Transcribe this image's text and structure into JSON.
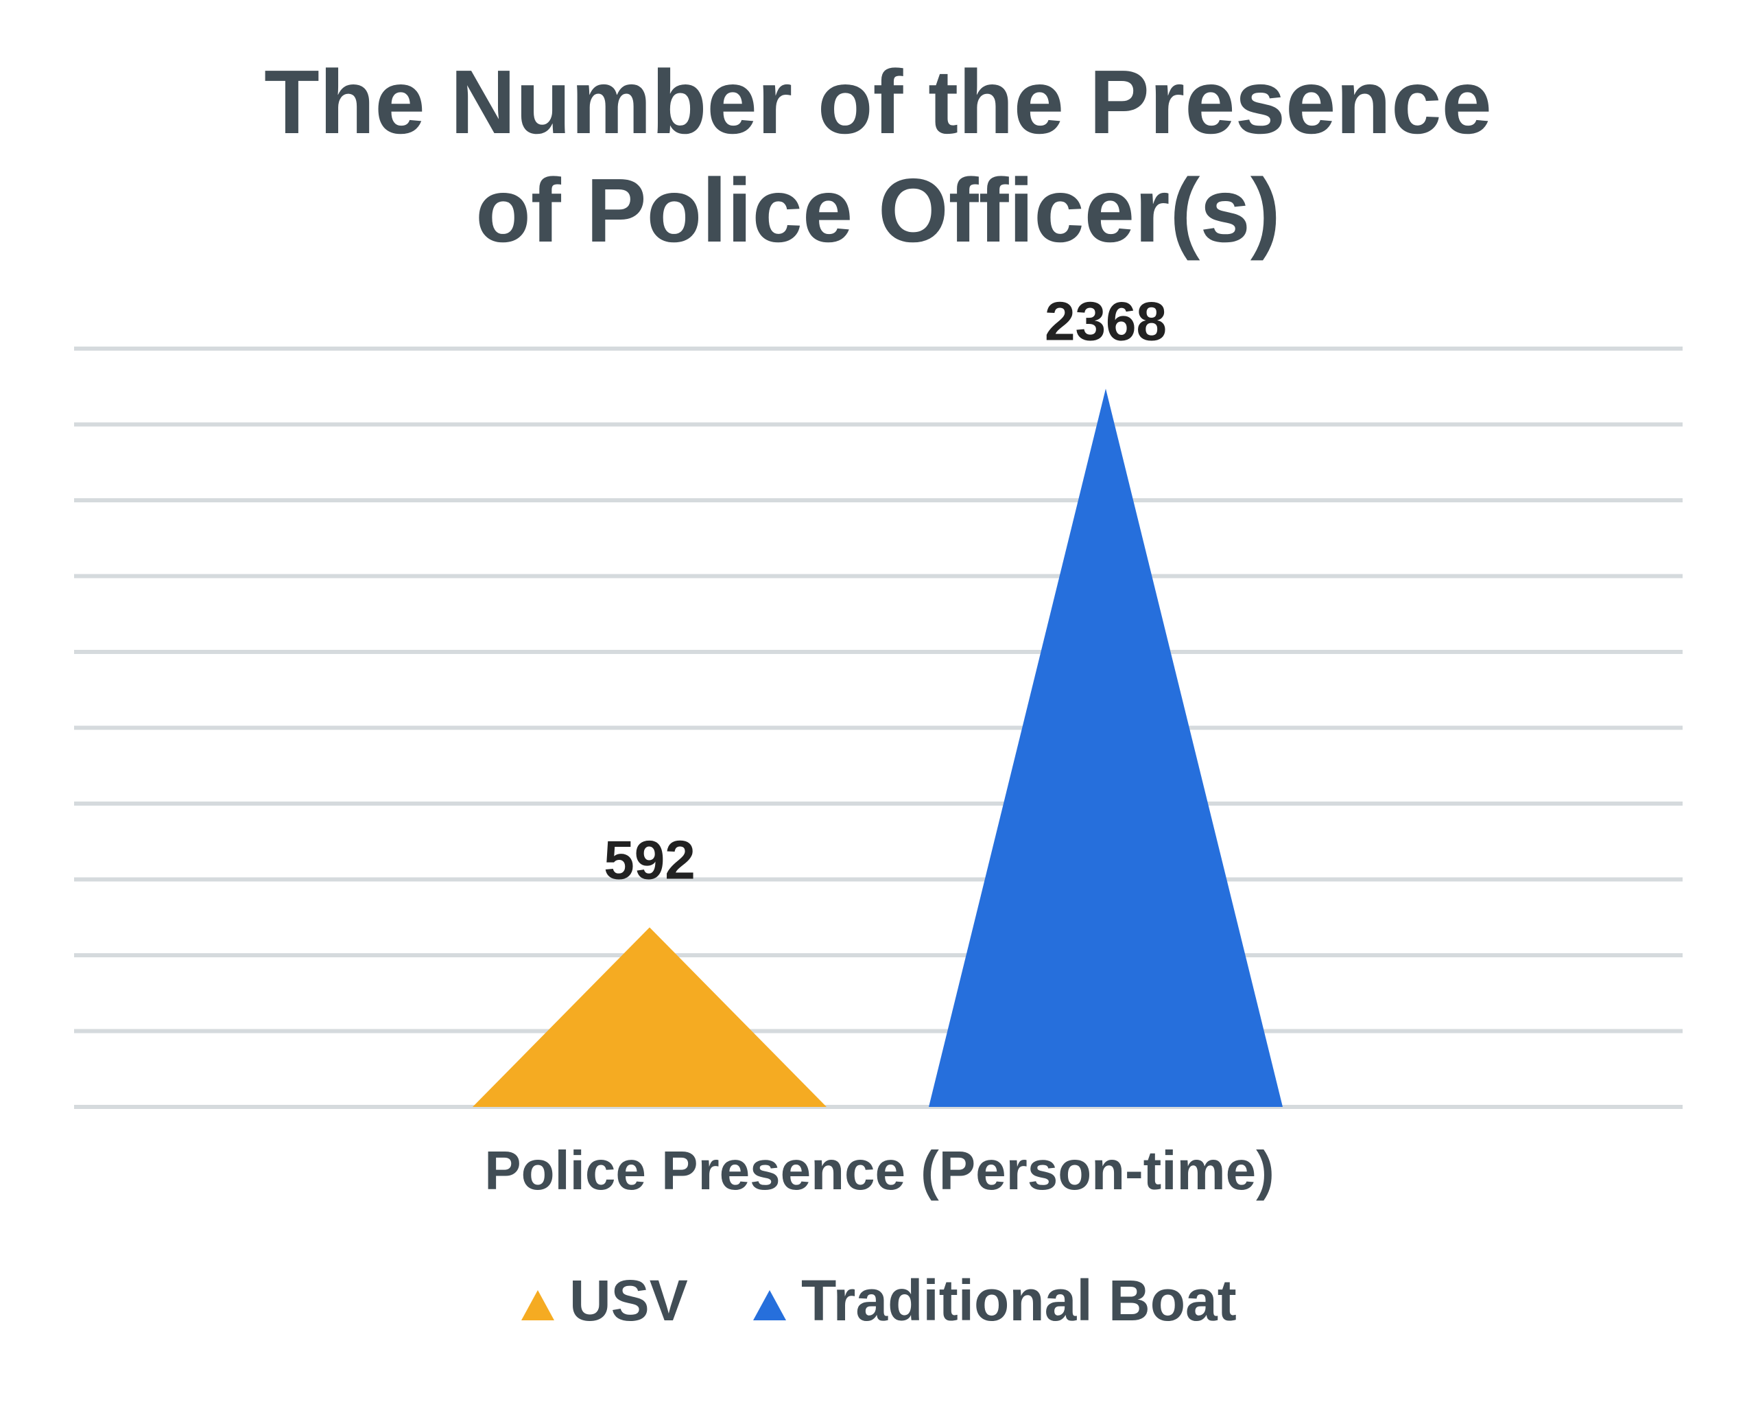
{
  "chart_data": {
    "type": "triangle-bar",
    "title": "The Number of the Presence of Police Officer(s)",
    "categories": [
      "Police Presence (Person-time)"
    ],
    "series": [
      {
        "name": "USV",
        "color": "#f5ab22",
        "values": [
          592
        ]
      },
      {
        "name": "Traditional Boat",
        "color": "#266fdc",
        "values": [
          2368
        ]
      }
    ],
    "ylim": [
      0,
      2500
    ],
    "yticks": [
      0,
      250,
      500,
      750,
      1000,
      1250,
      1500,
      1750,
      2000,
      2250,
      2500
    ],
    "grid": true,
    "legend": "bottom"
  }
}
